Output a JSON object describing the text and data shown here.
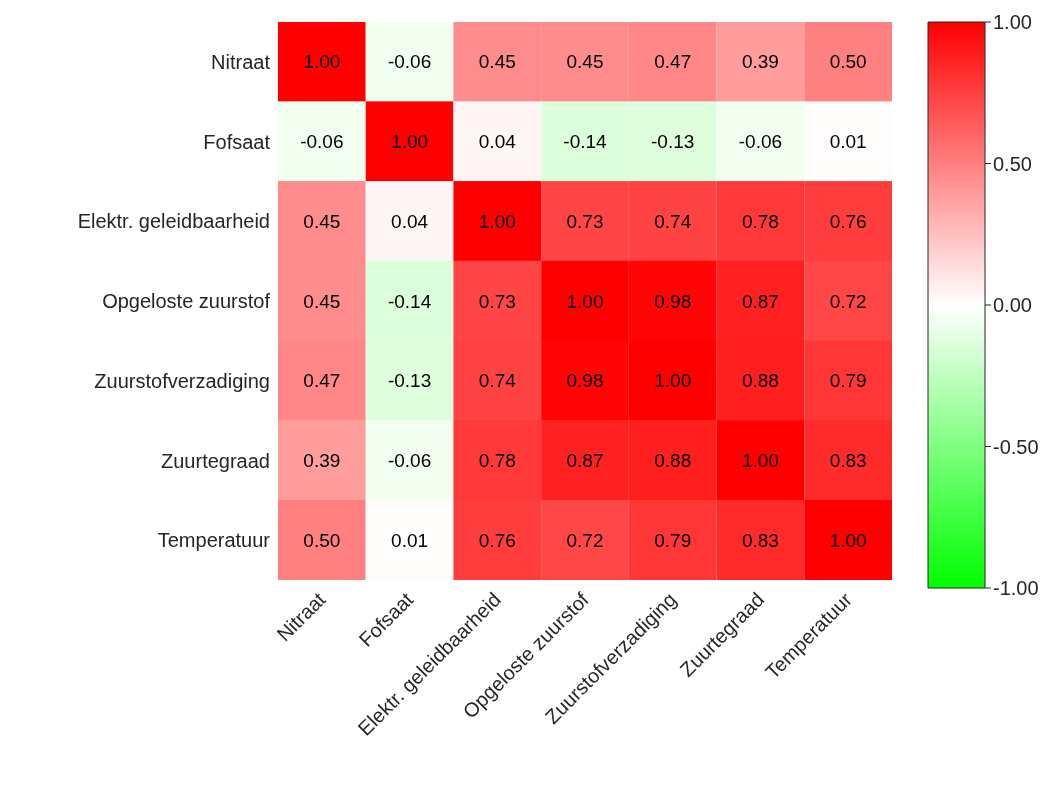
{
  "chart_data": {
    "type": "heatmap",
    "categories": [
      "Nitraat",
      "Fofsaat",
      "Elektr. geleidbaarheid",
      "Opgeloste zuurstof",
      "Zuurstofverzadiging",
      "Zuurtegraad",
      "Temperatuur"
    ],
    "y_categories": [
      "Nitraat",
      "Fofsaat",
      "Elektr. geleidbaarheid",
      "Opgeloste zuurstof",
      "Zuurstofverzadiging",
      "Zuurtegraad",
      "Temperatuur"
    ],
    "cells": [
      [
        1.0,
        -0.06,
        0.45,
        0.45,
        0.47,
        0.39,
        0.5
      ],
      [
        -0.06,
        1.0,
        0.04,
        -0.14,
        -0.13,
        -0.06,
        0.01
      ],
      [
        0.45,
        0.04,
        1.0,
        0.73,
        0.74,
        0.78,
        0.76
      ],
      [
        0.45,
        -0.14,
        0.73,
        1.0,
        0.98,
        0.87,
        0.72
      ],
      [
        0.47,
        -0.13,
        0.74,
        0.98,
        1.0,
        0.88,
        0.79
      ],
      [
        0.39,
        -0.06,
        0.78,
        0.87,
        0.88,
        1.0,
        0.83
      ],
      [
        0.5,
        0.01,
        0.76,
        0.72,
        0.79,
        0.83,
        1.0
      ]
    ],
    "cell_labels": [
      [
        "1.00",
        "-0.06",
        "0.45",
        "0.45",
        "0.47",
        "0.39",
        "0.50"
      ],
      [
        "-0.06",
        "1.00",
        "0.04",
        "-0.14",
        "-0.13",
        "-0.06",
        "0.01"
      ],
      [
        "0.45",
        "0.04",
        "1.00",
        "0.73",
        "0.74",
        "0.78",
        "0.76"
      ],
      [
        "0.45",
        "-0.14",
        "0.73",
        "1.00",
        "0.98",
        "0.87",
        "0.72"
      ],
      [
        "0.47",
        "-0.13",
        "0.74",
        "0.98",
        "1.00",
        "0.88",
        "0.79"
      ],
      [
        "0.39",
        "-0.06",
        "0.78",
        "0.87",
        "0.88",
        "1.00",
        "0.83"
      ],
      [
        "0.50",
        "0.01",
        "0.76",
        "0.72",
        "0.79",
        "0.83",
        "1.00"
      ]
    ],
    "clim": [
      -1,
      1
    ],
    "cticks": [
      {
        "value": 1,
        "label": "1.00"
      },
      {
        "value": 0.5,
        "label": "0.50"
      },
      {
        "value": 0,
        "label": "0.00"
      },
      {
        "value": -0.5,
        "label": "-0.50"
      },
      {
        "value": -1,
        "label": "-1.00"
      }
    ]
  }
}
